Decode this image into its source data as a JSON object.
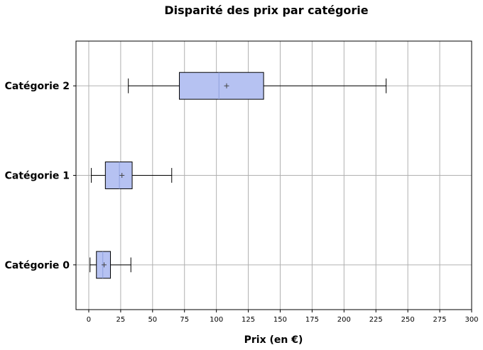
{
  "chart_data": {
    "type": "boxplot",
    "orientation": "horizontal",
    "title": "Disparité des prix par catégorie",
    "xlabel": "Prix (en €)",
    "ylabel": "",
    "xlim": [
      -10,
      300
    ],
    "xticks": [
      "0",
      "25",
      "50",
      "75",
      "100",
      "125",
      "150",
      "175",
      "200",
      "225",
      "250",
      "275",
      "300"
    ],
    "grid": true,
    "box_color": "#b6c2f2",
    "categories": [
      "Catégorie 0",
      "Catégorie 1",
      "Catégorie 2"
    ],
    "boxes": [
      {
        "whisker_low": 1,
        "q1": 6,
        "median": 11,
        "mean": 12,
        "q3": 17,
        "whisker_high": 33
      },
      {
        "whisker_low": 2,
        "q1": 13,
        "median": 24,
        "mean": 26,
        "q3": 34,
        "whisker_high": 65
      },
      {
        "whisker_low": 31,
        "q1": 71,
        "median": 102,
        "mean": 108,
        "q3": 137,
        "whisker_high": 233
      }
    ]
  }
}
